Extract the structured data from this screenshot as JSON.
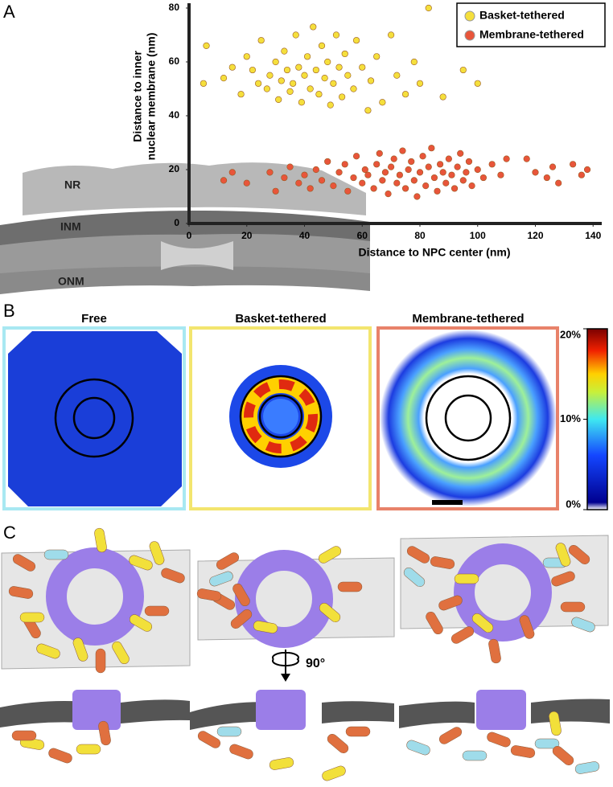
{
  "panel_labels": [
    "A",
    "B",
    "C"
  ],
  "chart_data": {
    "type": "scatter",
    "xlabel": "Distance to NPC center (nm)",
    "ylabel_lines": [
      "Distance to inner",
      "nuclear membrane (nm)"
    ],
    "xlim": [
      0,
      143
    ],
    "ylim": [
      0,
      80
    ],
    "xticks": [
      0,
      20,
      40,
      60,
      80,
      100,
      120,
      140
    ],
    "yticks": [
      0,
      20,
      40,
      60,
      80
    ],
    "legend": "upper right",
    "series": [
      {
        "name": "Basket-tethered",
        "color": "#f5df3c",
        "x": [
          5,
          6,
          12,
          15,
          18,
          20,
          22,
          24,
          25,
          27,
          28,
          30,
          31,
          32,
          33,
          34,
          35,
          36,
          37,
          38,
          39,
          40,
          41,
          42,
          43,
          44,
          45,
          46,
          47,
          48,
          49,
          50,
          51,
          52,
          53,
          54,
          55,
          57,
          58,
          60,
          62,
          63,
          65,
          67,
          70,
          72,
          75,
          78,
          80,
          83,
          88,
          95,
          100
        ],
        "values": [
          52,
          66,
          54,
          58,
          48,
          62,
          57,
          52,
          68,
          50,
          55,
          60,
          46,
          53,
          64,
          57,
          49,
          52,
          70,
          58,
          45,
          55,
          62,
          50,
          73,
          57,
          48,
          66,
          54,
          60,
          44,
          52,
          70,
          58,
          47,
          63,
          55,
          50,
          68,
          58,
          42,
          53,
          62,
          45,
          70,
          55,
          48,
          60,
          52,
          80,
          47,
          57,
          52
        ]
      },
      {
        "name": "Membrane-tethered",
        "color": "#e8553a",
        "x": [
          12,
          15,
          20,
          28,
          30,
          33,
          35,
          38,
          40,
          42,
          44,
          46,
          48,
          50,
          52,
          54,
          55,
          57,
          58,
          60,
          61,
          62,
          64,
          65,
          66,
          67,
          68,
          69,
          70,
          71,
          72,
          73,
          74,
          75,
          76,
          77,
          78,
          79,
          80,
          81,
          82,
          83,
          84,
          85,
          86,
          87,
          88,
          89,
          90,
          91,
          92,
          93,
          94,
          95,
          96,
          97,
          98,
          100,
          102,
          105,
          108,
          110,
          117,
          120,
          124,
          126,
          128,
          133,
          136,
          138
        ],
        "values": [
          16,
          19,
          15,
          19,
          12,
          17,
          21,
          15,
          18,
          13,
          20,
          16,
          23,
          14,
          19,
          22,
          12,
          17,
          25,
          15,
          20,
          18,
          13,
          22,
          26,
          16,
          19,
          11,
          21,
          24,
          15,
          18,
          27,
          13,
          20,
          23,
          16,
          10,
          19,
          25,
          14,
          21,
          28,
          17,
          12,
          22,
          19,
          15,
          24,
          18,
          13,
          21,
          26,
          16,
          19,
          23,
          14,
          20,
          17,
          22,
          18,
          24,
          24,
          19,
          17,
          21,
          15,
          22,
          18,
          20
        ]
      }
    ]
  },
  "panel_a_labels": [
    "NR",
    "INM",
    "ONM"
  ],
  "panel_b": {
    "titles": [
      "Free",
      "Basket-tethered",
      "Membrane-tethered"
    ],
    "colorbar": {
      "range": [
        0,
        20
      ],
      "ticks": [
        {
          "value": 20,
          "label": "20%"
        },
        {
          "value": 10,
          "label": "10%"
        },
        {
          "value": 0,
          "label": "0%"
        }
      ]
    }
  },
  "panel_c": {
    "rotation": "90°"
  }
}
